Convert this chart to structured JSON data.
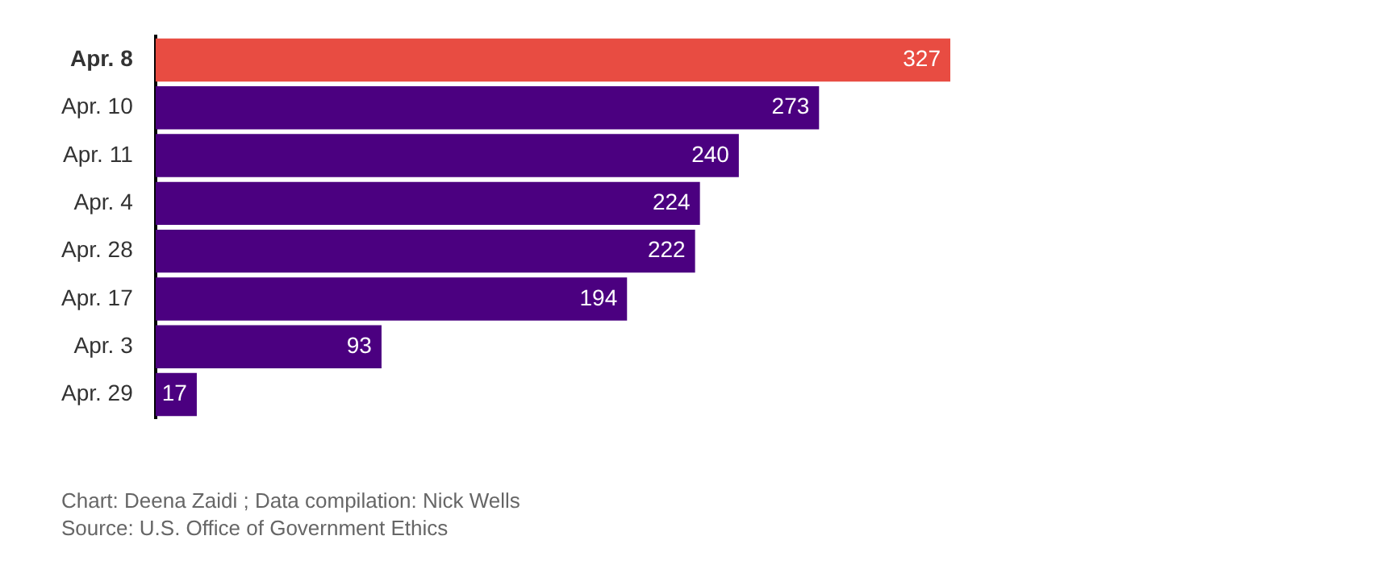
{
  "chart_data": {
    "type": "bar",
    "orientation": "horizontal",
    "categories": [
      "Apr. 8",
      "Apr. 10",
      "Apr. 11",
      "Apr. 4",
      "Apr. 28",
      "Apr. 17",
      "Apr. 3",
      "Apr. 29"
    ],
    "values": [
      327,
      273,
      240,
      224,
      222,
      194,
      93,
      17
    ],
    "colors": [
      "#e84c42",
      "#4b0080",
      "#4b0080",
      "#4b0080",
      "#4b0080",
      "#4b0080",
      "#4b0080",
      "#4b0080"
    ],
    "data_labels": true,
    "legend": false,
    "annotations": [
      "Chart: Deena Zaidi ; Data compilation: Nick Wells",
      "Source: U.S. Office of Government Ethics"
    ]
  }
}
